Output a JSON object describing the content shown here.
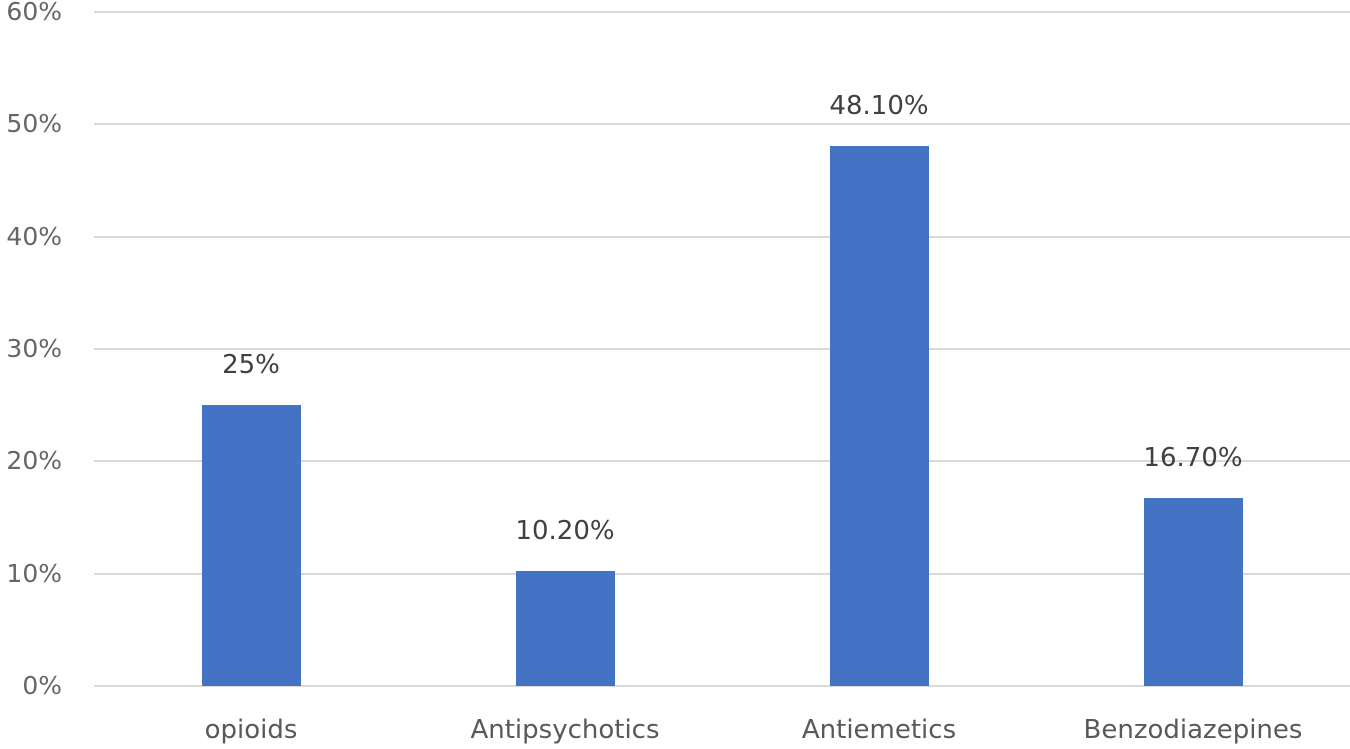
{
  "chart_data": {
    "type": "bar",
    "title": "",
    "xlabel": "",
    "ylabel": "",
    "categories": [
      "opioids",
      "Antipsychotics",
      "Antiemetics",
      "Benzodiazepines"
    ],
    "values": [
      25,
      10.2,
      48.1,
      16.7
    ],
    "data_labels": [
      "25%",
      "10.20%",
      "48.10%",
      "16.70%"
    ],
    "ylim": [
      0,
      60
    ],
    "yticks": [
      0,
      10,
      20,
      30,
      40,
      50,
      60
    ],
    "ytick_labels": [
      "0%",
      "10%",
      "20%",
      "30%",
      "40%",
      "50%",
      "60%"
    ],
    "grid": true,
    "legend": null,
    "bar_color": "#4472c4"
  }
}
